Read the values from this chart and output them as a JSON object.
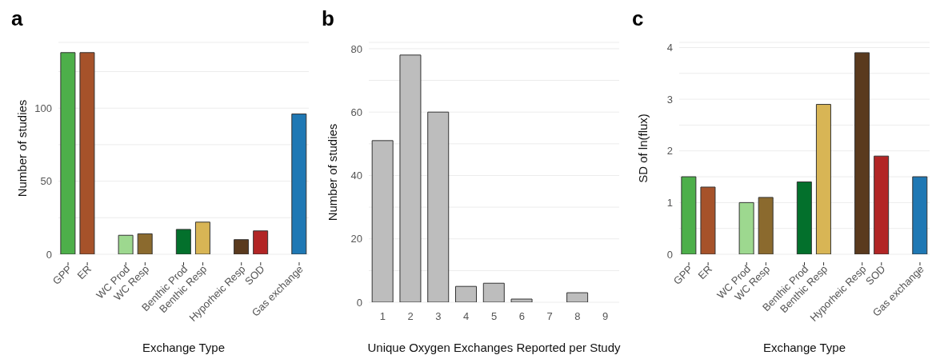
{
  "chart_data": [
    {
      "type": "bar",
      "title": "a",
      "xlabel": "Exchange Type",
      "ylabel": "Number of studies",
      "categories": [
        "GPP",
        "ER",
        null,
        "WC Prod",
        "WC Resp",
        null,
        "Benthic Prod",
        "Benthic Resp",
        null,
        "Hyporheic Resp",
        "SOD",
        null,
        "Gas exchange"
      ],
      "values": [
        138,
        138,
        null,
        13,
        14,
        null,
        17,
        22,
        null,
        10,
        16,
        null,
        96
      ],
      "colors": [
        "#4daf4a",
        "#a6522a",
        null,
        "#9dd88f",
        "#8b6a2e",
        null,
        "#03702c",
        "#d8b555",
        null,
        "#5a3a1e",
        "#b22525",
        null,
        "#1f78b4"
      ],
      "ylim": [
        0,
        145
      ],
      "yticks": [
        0,
        {
          "value": 25,
          "label": null
        },
        50,
        {
          "value": 75,
          "label": null
        },
        100,
        {
          "value": 125,
          "label": null
        }
      ],
      "grid": "y"
    },
    {
      "type": "bar",
      "title": "b",
      "xlabel": "Unique Oxygen Exchanges Reported per Study",
      "ylabel": "Number of studies",
      "categories": [
        "1",
        "2",
        "3",
        "4",
        "5",
        "6",
        "7",
        "8",
        "9"
      ],
      "values": [
        51,
        78,
        60,
        5,
        6,
        1,
        0,
        3,
        0
      ],
      "color": "#bdbdbd",
      "ylim": [
        0,
        82
      ],
      "yticks": [
        0,
        {
          "value": 10,
          "label": null
        },
        20,
        {
          "value": 30,
          "label": null
        },
        40,
        {
          "value": 50,
          "label": null
        },
        60,
        {
          "value": 70,
          "label": null
        },
        80
      ],
      "grid": "y"
    },
    {
      "type": "bar",
      "title": "c",
      "xlabel": "Exchange Type",
      "ylabel": "SD of ln(flux)",
      "categories": [
        "GPP",
        "ER",
        null,
        "WC Prod",
        "WC Resp",
        null,
        "Benthic Prod",
        "Benthic Resp",
        null,
        "Hyporheic Resp",
        "SOD",
        null,
        "Gas exchange"
      ],
      "values": [
        1.5,
        1.3,
        null,
        1.0,
        1.1,
        null,
        1.4,
        2.9,
        null,
        3.9,
        1.9,
        null,
        1.5
      ],
      "colors": [
        "#4daf4a",
        "#a6522a",
        null,
        "#9dd88f",
        "#8b6a2e",
        null,
        "#03702c",
        "#d8b555",
        null,
        "#5a3a1e",
        "#b22525",
        null,
        "#1f78b4"
      ],
      "ylim": [
        0,
        4.1
      ],
      "yticks": [
        0,
        {
          "value": 0.5,
          "label": null
        },
        1,
        {
          "value": 1.5,
          "label": null
        },
        2,
        {
          "value": 2.5,
          "label": null
        },
        3,
        {
          "value": 3.5,
          "label": null
        },
        4
      ],
      "grid": "y"
    }
  ]
}
